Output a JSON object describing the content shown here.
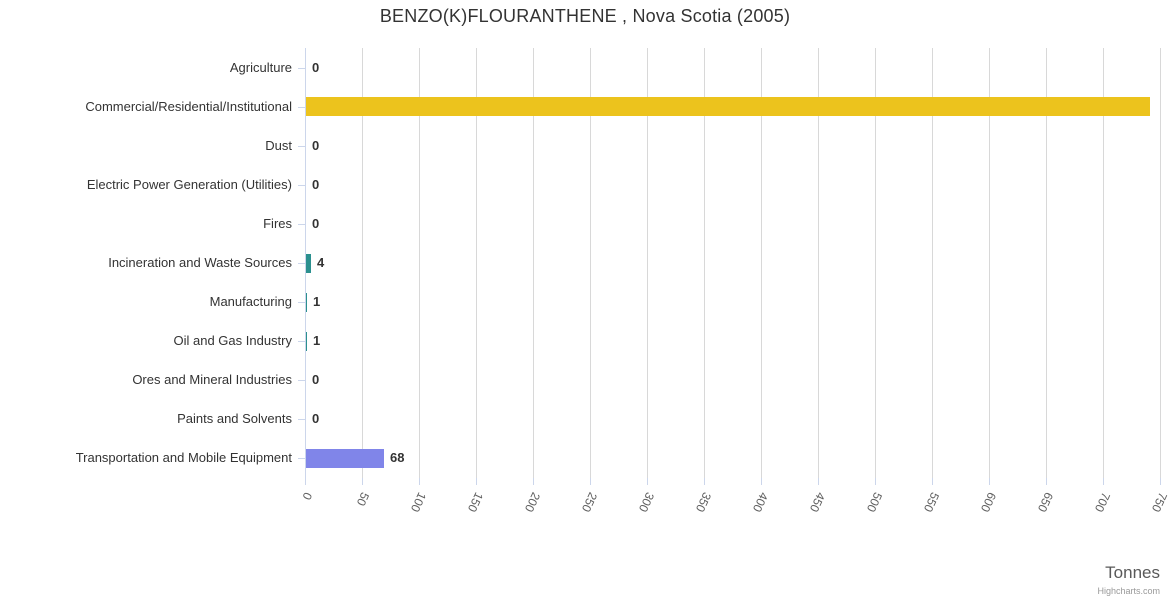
{
  "title": "BENZO(K)FLOURANTHENE , Nova Scotia (2005)",
  "x_axis_title": "Tonnes",
  "credits": "Highcharts.com",
  "chart_data": {
    "type": "bar",
    "orientation": "horizontal",
    "title": "BENZO(K)FLOURANTHENE , Nova Scotia (2005)",
    "xlabel": "Tonnes",
    "ylabel": "",
    "xlim": [
      0,
      750
    ],
    "x_ticks": [
      0,
      50,
      100,
      150,
      200,
      250,
      300,
      350,
      400,
      450,
      500,
      550,
      600,
      650,
      700,
      750
    ],
    "grid": "vertical-gridlines-on",
    "legend": "none",
    "categories": [
      "Agriculture",
      "Commercial/Residential/Institutional",
      "Dust",
      "Electric Power Generation (Utilities)",
      "Fires",
      "Incineration and Waste Sources",
      "Manufacturing",
      "Oil and Gas Industry",
      "Ores and Mineral Industries",
      "Paints and Solvents",
      "Transportation and Mobile Equipment"
    ],
    "values": [
      0,
      740,
      0,
      0,
      0,
      4,
      1,
      1,
      0,
      0,
      68
    ],
    "data_labels": [
      "0",
      "740",
      "0",
      "0",
      "0",
      "4",
      "1",
      "1",
      "0",
      "0",
      "68"
    ],
    "bar_colors": [
      "#2b908f",
      "#ecc31d",
      "#2b908f",
      "#2b908f",
      "#2b908f",
      "#2b908f",
      "#2b908f",
      "#2b908f",
      "#2b908f",
      "#2b908f",
      "#8085e9"
    ],
    "colors": {
      "gold_bar": "#ecc31d",
      "teal_bar": "#2b908f",
      "purple_bar": "#8085e9",
      "gridline": "#d8d8d8",
      "axis_line": "#ccd6eb",
      "text": "#333333",
      "axis_label_text": "#606060"
    }
  }
}
